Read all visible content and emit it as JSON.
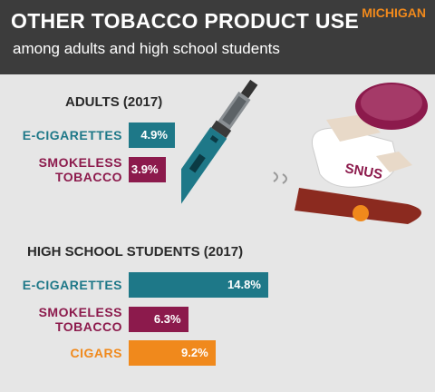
{
  "header": {
    "title": "OTHER TOBACCO PRODUCT USE",
    "subtitle": "among adults and high school students",
    "region": "MICHIGAN"
  },
  "illustration": {
    "label": "SNUS"
  },
  "chart_data": [
    {
      "type": "bar",
      "orientation": "horizontal",
      "title": "ADULTS (2017)",
      "categories": [
        "E-CIGARETTES",
        "SMOKELESS TOBACCO"
      ],
      "values": [
        4.9,
        3.9
      ],
      "value_labels": [
        "4.9%",
        "3.9%"
      ],
      "colors": [
        "#1e7888",
        "#8c1a4c"
      ]
    },
    {
      "type": "bar",
      "orientation": "horizontal",
      "title": "HIGH SCHOOL STUDENTS (2017)",
      "categories": [
        "E-CIGARETTES",
        "SMOKELESS TOBACCO",
        "CIGARS"
      ],
      "values": [
        14.8,
        6.3,
        9.2
      ],
      "value_labels": [
        "14.8%",
        "6.3%",
        "9.2%"
      ],
      "colors": [
        "#1e7888",
        "#8c1a4c",
        "#f0891c"
      ]
    }
  ]
}
